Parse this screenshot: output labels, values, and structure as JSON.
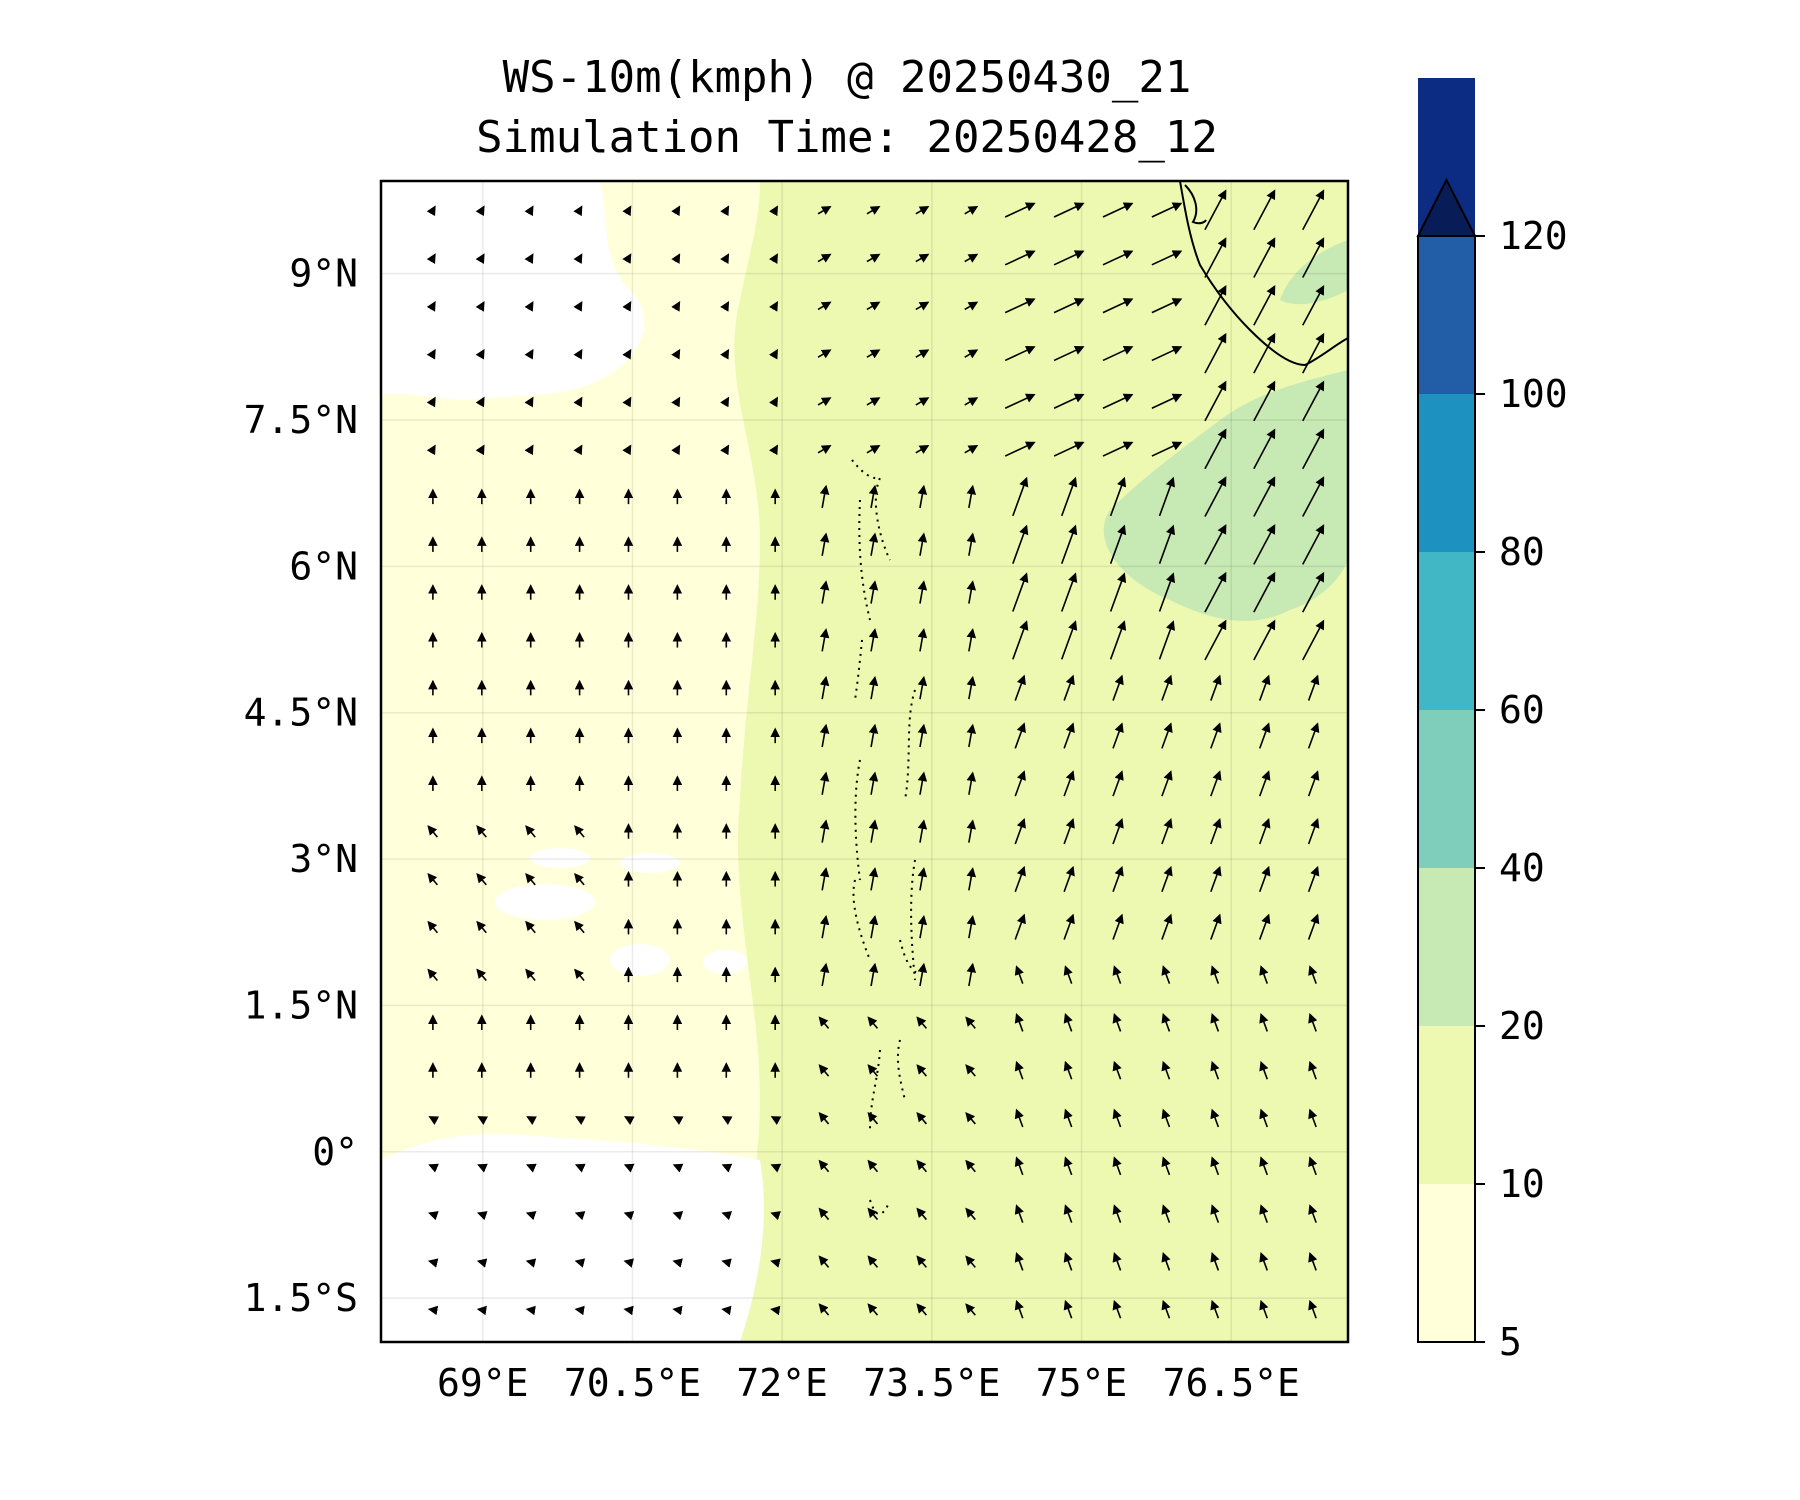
{
  "title": {
    "line1": "WS-10m(kmph) @ 20250430_21",
    "line2": "Simulation Time: 20250428_12"
  },
  "map": {
    "lon_range": [
      67.98,
      77.67
    ],
    "lat_range": [
      -1.95,
      9.95
    ],
    "lon_ticks": [
      {
        "value": 69,
        "label": "69°E"
      },
      {
        "value": 70.5,
        "label": "70.5°E"
      },
      {
        "value": 72,
        "label": "72°E"
      },
      {
        "value": 73.5,
        "label": "73.5°E"
      },
      {
        "value": 75,
        "label": "75°E"
      },
      {
        "value": 76.5,
        "label": "76.5°E"
      }
    ],
    "lat_ticks": [
      {
        "value": 9,
        "label": "9°N"
      },
      {
        "value": 7.5,
        "label": "7.5°N"
      },
      {
        "value": 6,
        "label": "6°N"
      },
      {
        "value": 4.5,
        "label": "4.5°N"
      },
      {
        "value": 3,
        "label": "3°N"
      },
      {
        "value": 1.5,
        "label": "1.5°N"
      },
      {
        "value": 0,
        "label": "0°"
      },
      {
        "value": -1.5,
        "label": "1.5°S"
      }
    ],
    "gridlines": true,
    "wind_field": "arrows: mostly northward, strengthening toward north-east",
    "coastline": "Sri Lanka / India south tip in north-east corner; Maldives atolls dotted near 73.5°E"
  },
  "colorbar": {
    "levels": [
      "5",
      "10",
      "20",
      "40",
      "60",
      "80",
      "100",
      "120"
    ],
    "colors": [
      "#ffffd9",
      "#edf8b1",
      "#c7e9b4",
      "#7fcdbb",
      "#41b6c4",
      "#1d91c0",
      "#225ea8",
      "#0c2c84"
    ],
    "extend": "max",
    "extend_color": "#081d58"
  }
}
